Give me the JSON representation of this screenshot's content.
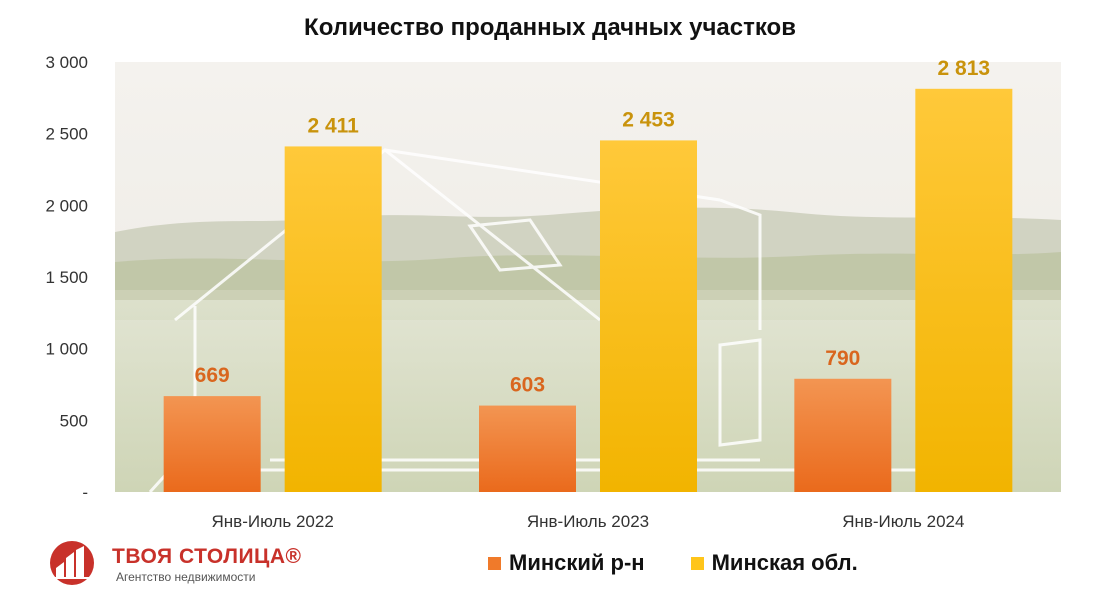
{
  "chart_data": {
    "type": "bar",
    "title": "Количество проданных дачных участков",
    "categories": [
      "Янв-Июль 2022",
      "Янв-Июль 2023",
      "Янв-Июль 2024"
    ],
    "series": [
      {
        "name": "Минский р-н",
        "values": [
          669,
          603,
          790
        ],
        "value_labels": [
          "669",
          "603",
          "790"
        ],
        "color": "#f07a2a",
        "label_color": "#d9661e"
      },
      {
        "name": "Минская обл.",
        "values": [
          2411,
          2453,
          2813
        ],
        "value_labels": [
          "2 411",
          "2 453",
          "2 813"
        ],
        "color": "#ffc51a",
        "label_color": "#c9930c"
      }
    ],
    "ylim": [
      0,
      3000
    ],
    "yticks": [
      0,
      500,
      1000,
      1500,
      2000,
      2500,
      3000
    ],
    "ytick_labels": [
      "-",
      "500",
      "1 000",
      "1 500",
      "2 000",
      "2 500",
      "3 000"
    ],
    "grid": false,
    "legend_position": "bottom",
    "background": "landscape photo with house sketch"
  },
  "logo": {
    "name": "ТВОЯ СТОЛИЦА®",
    "tagline": "Агентство недвижимости",
    "color": "#c8312a"
  }
}
